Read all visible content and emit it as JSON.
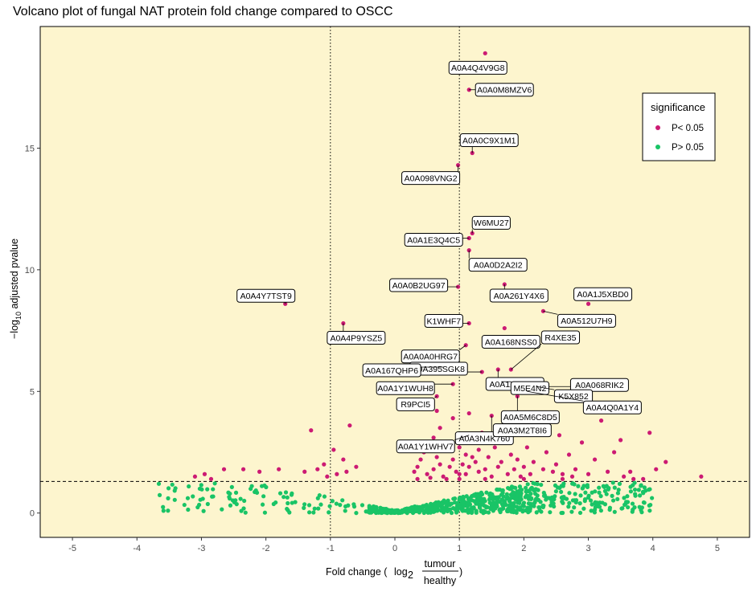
{
  "chart_data": {
    "type": "scatter",
    "title": "Volcano plot of fungal NAT protein fold change compared to OSCC",
    "xlabel": {
      "prefix": "Fold change",
      "log_base": "log",
      "log_sub": "2",
      "numerator": "tumour",
      "denominator": "healthy"
    },
    "ylabel": {
      "prefix": "−log",
      "sub": "10",
      "suffix": " adjusted pvalue"
    },
    "xlim": [
      -5.5,
      5.5
    ],
    "ylim": [
      -1,
      20
    ],
    "xticks": [
      -5,
      -4,
      -3,
      -2,
      -1,
      0,
      1,
      2,
      3,
      4,
      5
    ],
    "yticks": [
      0,
      5,
      10,
      15
    ],
    "reference_lines": {
      "vertical_dotted": [
        -1,
        1
      ],
      "horizontal_dashed": 1.3
    },
    "colors": {
      "panel_background": "#fdf5ce",
      "significant": "#cc1a73",
      "not_significant": "#19c466"
    },
    "legend": {
      "title": "significance",
      "position": "top-right",
      "entries": [
        {
          "label": "P< 0.05",
          "color": "#cc1a73"
        },
        {
          "label": "P> 0.05",
          "color": "#19c466"
        }
      ]
    },
    "labeled_points": [
      {
        "label": "A0A4Q4V9G8",
        "x": 1.4,
        "y": 18.9
      },
      {
        "label": "A0A0M8MZV6",
        "x": 1.15,
        "y": 17.4
      },
      {
        "label": "A0A0C9X1M1",
        "x": 1.2,
        "y": 14.8
      },
      {
        "label": "A0A098VNG2",
        "x": 0.98,
        "y": 14.3
      },
      {
        "label": "W6MU27",
        "x": 1.2,
        "y": 11.5
      },
      {
        "label": "A0A1E3Q4C5",
        "x": 1.15,
        "y": 11.3
      },
      {
        "label": "A0A0D2A2I2",
        "x": 1.15,
        "y": 10.8
      },
      {
        "label": "A0A0B2UG97",
        "x": 0.98,
        "y": 9.3
      },
      {
        "label": "A0A261Y4X6",
        "x": 1.7,
        "y": 9.4
      },
      {
        "label": "A0A1J5XBD0",
        "x": 3.0,
        "y": 8.6
      },
      {
        "label": "A0A4Y7TST9",
        "x": -1.7,
        "y": 8.6
      },
      {
        "label": "K1WHF7",
        "x": 1.15,
        "y": 7.8
      },
      {
        "label": "A0A512U7H9",
        "x": 2.3,
        "y": 8.3
      },
      {
        "label": "A0A4P9YSZ5",
        "x": -0.8,
        "y": 7.8
      },
      {
        "label": "A0A168NSS0",
        "x": 1.7,
        "y": 7.6
      },
      {
        "label": "A0A0A0HRG7",
        "x": 1.1,
        "y": 6.9
      },
      {
        "label": "R4XE35",
        "x": 1.8,
        "y": 5.9
      },
      {
        "label": "A0A395SGK8",
        "x": 1.35,
        "y": 5.8
      },
      {
        "label": "A0A1X2H166",
        "x": 1.6,
        "y": 5.9
      },
      {
        "label": "A0A167QHP6",
        "x": 0.75,
        "y": 6.0
      },
      {
        "label": "A0A068RIK2",
        "x": 2.35,
        "y": 5.2
      },
      {
        "label": "M5E4N2",
        "x": 1.65,
        "y": 5.4
      },
      {
        "label": "A0A1Y1WUH8",
        "x": 0.9,
        "y": 5.3
      },
      {
        "label": "K5X852",
        "x": 2.2,
        "y": 5.2
      },
      {
        "label": "R9PCI5",
        "x": 0.65,
        "y": 4.8
      },
      {
        "label": "A0A5M6C8D5",
        "x": 1.9,
        "y": 4.8
      },
      {
        "label": "A0A4Q0A1Y4",
        "x": 2.05,
        "y": 5.0
      },
      {
        "label": "A0A3N4K760",
        "x": 1.5,
        "y": 4.0
      },
      {
        "label": "A0A1Y1WHV7",
        "x": 1.15,
        "y": 3.2
      },
      {
        "label": "A0A3M2T8I6",
        "x": 1.9,
        "y": 3.9
      }
    ],
    "significant_points": [
      [
        -1.3,
        3.4
      ],
      [
        -0.7,
        3.6
      ],
      [
        -0.95,
        2.6
      ],
      [
        -0.8,
        2.2
      ],
      [
        -1.1,
        2.0
      ],
      [
        -1.2,
        1.8
      ],
      [
        -1.4,
        1.7
      ],
      [
        -0.6,
        1.9
      ],
      [
        -0.9,
        1.6
      ],
      [
        -1.8,
        1.8
      ],
      [
        -2.1,
        1.7
      ],
      [
        -2.35,
        1.8
      ],
      [
        -2.65,
        1.8
      ],
      [
        -2.85,
        1.4
      ],
      [
        -2.95,
        1.6
      ],
      [
        -3.1,
        1.5
      ],
      [
        -1.05,
        1.5
      ],
      [
        -0.75,
        1.7
      ],
      [
        0.3,
        1.7
      ],
      [
        0.35,
        1.9
      ],
      [
        0.4,
        2.2
      ],
      [
        0.45,
        2.5
      ],
      [
        0.5,
        1.6
      ],
      [
        0.55,
        2.8
      ],
      [
        0.6,
        3.1
      ],
      [
        0.6,
        1.8
      ],
      [
        0.65,
        2.3
      ],
      [
        0.7,
        2.0
      ],
      [
        0.7,
        3.5
      ],
      [
        0.75,
        1.5
      ],
      [
        0.8,
        2.6
      ],
      [
        0.85,
        1.9
      ],
      [
        0.9,
        2.2
      ],
      [
        0.9,
        3.9
      ],
      [
        0.95,
        1.7
      ],
      [
        1.0,
        2.7
      ],
      [
        1.0,
        1.6
      ],
      [
        1.05,
        2.0
      ],
      [
        1.05,
        3.1
      ],
      [
        1.1,
        2.4
      ],
      [
        1.1,
        1.6
      ],
      [
        1.15,
        1.9
      ],
      [
        1.2,
        2.9
      ],
      [
        1.25,
        2.1
      ],
      [
        1.3,
        1.7
      ],
      [
        1.3,
        2.6
      ],
      [
        1.35,
        3.3
      ],
      [
        1.4,
        1.8
      ],
      [
        1.45,
        2.3
      ],
      [
        1.5,
        1.5
      ],
      [
        1.55,
        2.7
      ],
      [
        1.6,
        1.9
      ],
      [
        1.65,
        2.1
      ],
      [
        1.7,
        3.0
      ],
      [
        1.75,
        1.6
      ],
      [
        1.8,
        2.4
      ],
      [
        1.85,
        1.8
      ],
      [
        1.9,
        2.2
      ],
      [
        1.95,
        1.5
      ],
      [
        2.0,
        1.9
      ],
      [
        2.05,
        2.7
      ],
      [
        2.1,
        1.6
      ],
      [
        2.15,
        2.1
      ],
      [
        2.2,
        3.6
      ],
      [
        2.3,
        1.8
      ],
      [
        2.35,
        2.5
      ],
      [
        2.45,
        1.7
      ],
      [
        2.5,
        2.0
      ],
      [
        2.55,
        3.2
      ],
      [
        2.6,
        1.6
      ],
      [
        2.7,
        2.4
      ],
      [
        2.8,
        1.8
      ],
      [
        2.9,
        2.9
      ],
      [
        3.0,
        1.6
      ],
      [
        3.1,
        2.2
      ],
      [
        3.2,
        3.8
      ],
      [
        3.3,
        1.7
      ],
      [
        3.4,
        2.5
      ],
      [
        3.5,
        3.0
      ],
      [
        3.55,
        1.5
      ],
      [
        3.65,
        1.7
      ],
      [
        3.85,
        1.4
      ],
      [
        3.95,
        3.3
      ],
      [
        4.05,
        1.8
      ],
      [
        4.2,
        2.1
      ],
      [
        4.75,
        1.5
      ],
      [
        1.0,
        1.4
      ],
      [
        1.4,
        1.4
      ],
      [
        2.0,
        1.4
      ],
      [
        2.6,
        1.4
      ],
      [
        0.35,
        1.4
      ],
      [
        0.55,
        1.45
      ],
      [
        3.7,
        1.4
      ],
      [
        1.2,
        2.3
      ],
      [
        0.8,
        1.4
      ],
      [
        2.75,
        1.5
      ],
      [
        1.15,
        4.1
      ],
      [
        0.65,
        4.2
      ]
    ]
  }
}
